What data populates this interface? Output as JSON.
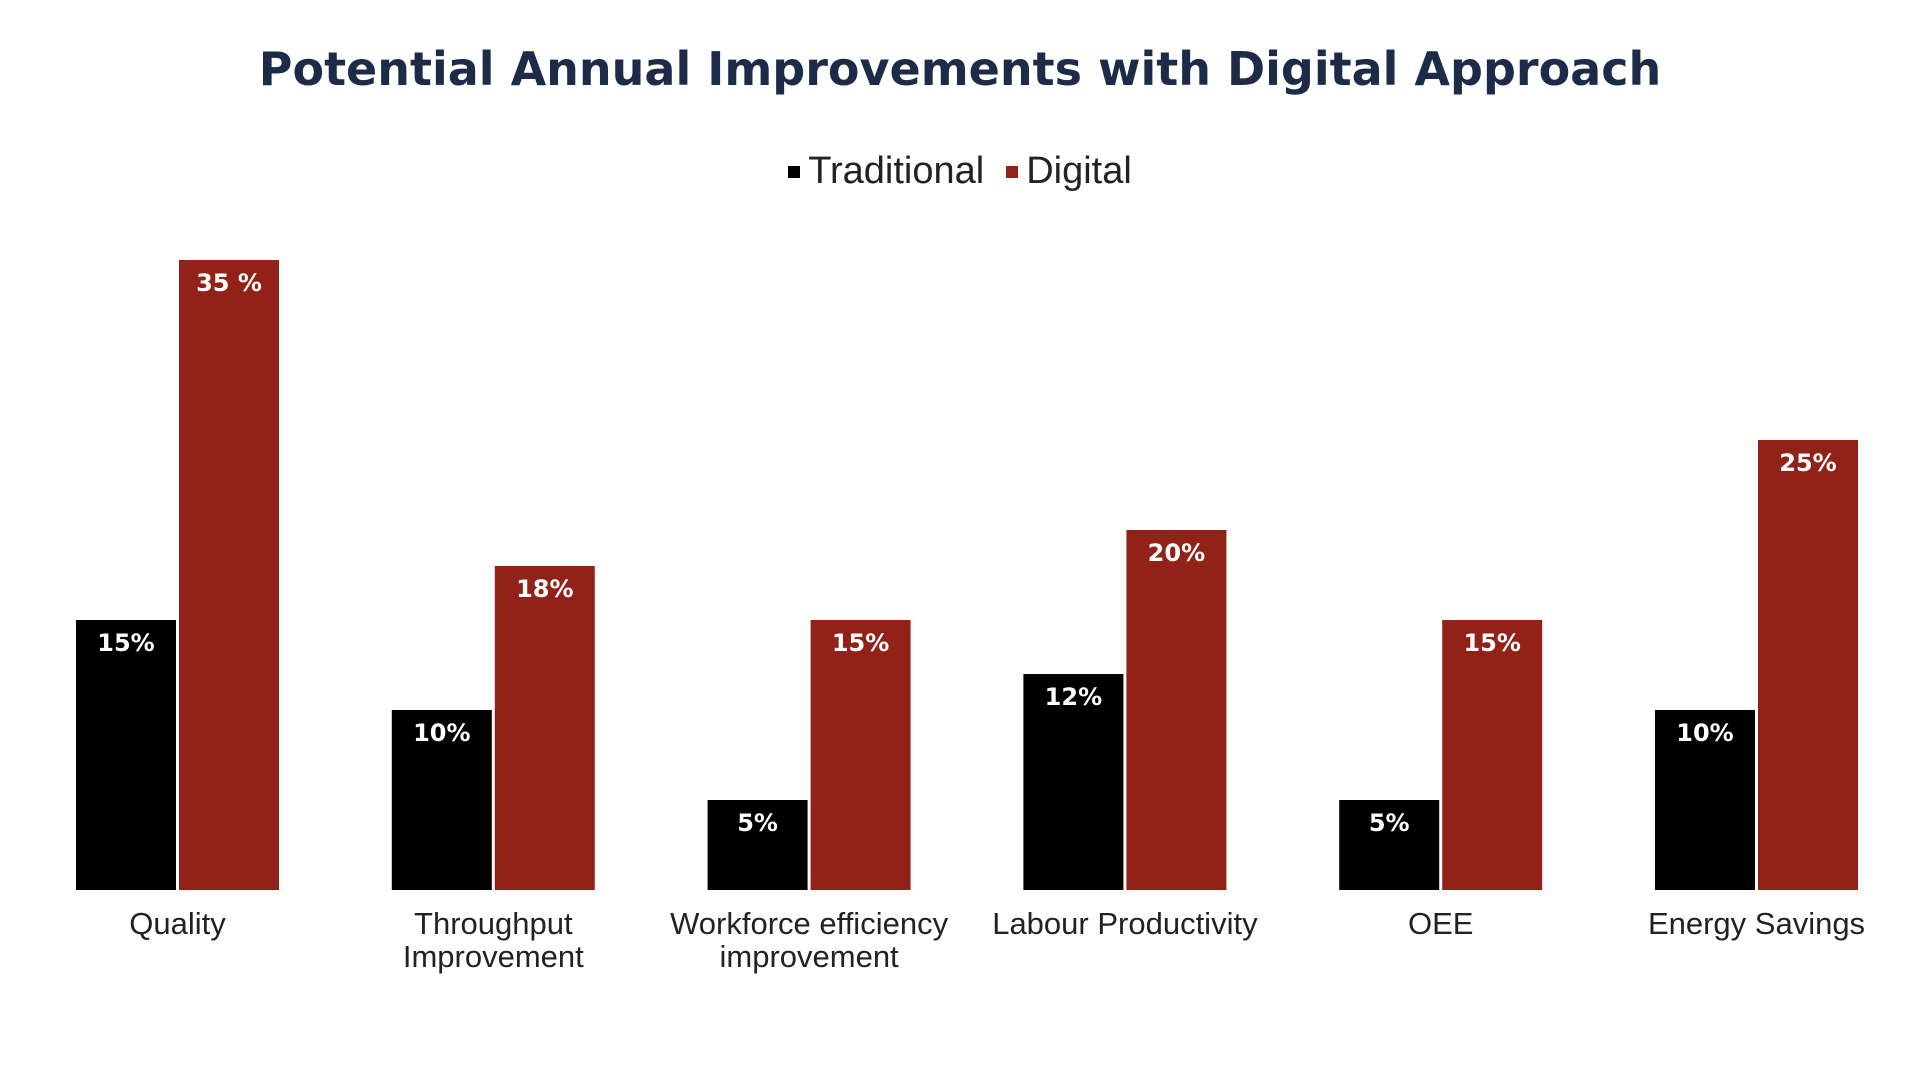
{
  "chart_data": {
    "type": "bar",
    "title": "Potential Annual Improvements with Digital Approach",
    "categories": [
      [
        "Quality"
      ],
      [
        "Throughput",
        "Improvement"
      ],
      [
        "Workforce efficiency",
        "improvement"
      ],
      [
        "Labour Productivity"
      ],
      [
        "OEE"
      ],
      [
        "Energy Savings"
      ]
    ],
    "series": [
      {
        "name": "Traditional",
        "color": "#000000",
        "values": [
          15,
          10,
          5,
          12,
          5,
          10
        ],
        "labels": [
          "15%",
          "10%",
          "5%",
          "12%",
          "5%",
          "10%"
        ]
      },
      {
        "name": "Digital",
        "color": "#922118",
        "values": [
          35,
          18,
          15,
          20,
          15,
          25
        ],
        "labels": [
          "35 %",
          "18%",
          "15%",
          "20%",
          "15%",
          "25%"
        ]
      }
    ],
    "ylim": [
      0,
      35
    ],
    "xlabel": "",
    "ylabel": "",
    "grid": false,
    "legend": "top-center"
  }
}
